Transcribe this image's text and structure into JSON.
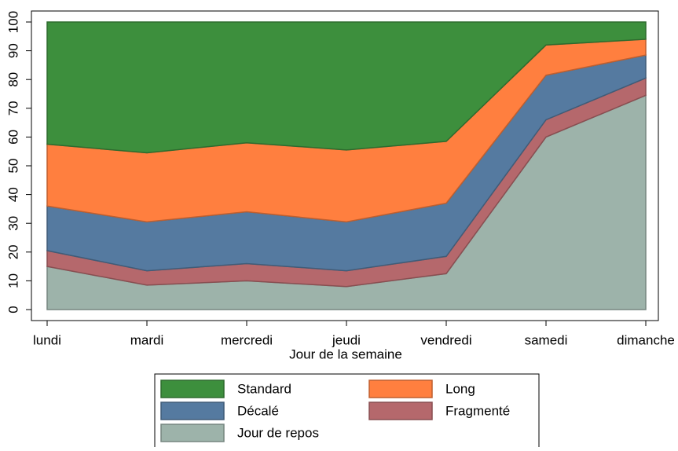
{
  "chart_data": {
    "type": "stacked-area",
    "x_label": "Jour de la semaine",
    "categories": [
      "lundi",
      "mardi",
      "mercredi",
      "jeudi",
      "vendredi",
      "samedi",
      "dimanche"
    ],
    "series": [
      {
        "name": "Standard",
        "color": "#3d8f3d",
        "values": [
          42.5,
          45.5,
          42,
          44.5,
          41.5,
          8,
          6
        ]
      },
      {
        "name": "Long",
        "color": "#ff7f3f",
        "values": [
          21.5,
          24,
          24,
          25,
          21.5,
          10.5,
          5.5
        ]
      },
      {
        "name": "Décalé",
        "color": "#557aa0",
        "values": [
          15.5,
          17,
          18,
          17,
          18.5,
          15.5,
          8
        ]
      },
      {
        "name": "Fragmenté",
        "color": "#b5686c",
        "values": [
          5.5,
          5,
          6,
          5.5,
          6,
          6,
          6
        ]
      },
      {
        "name": "Jour de repos",
        "color": "#9db3aa",
        "values": [
          15,
          8.5,
          10,
          8,
          12.5,
          60,
          74.5
        ]
      }
    ],
    "ylim": [
      0,
      100
    ],
    "yticks": [
      0,
      10,
      20,
      30,
      40,
      50,
      60,
      70,
      80,
      90,
      100
    ]
  }
}
